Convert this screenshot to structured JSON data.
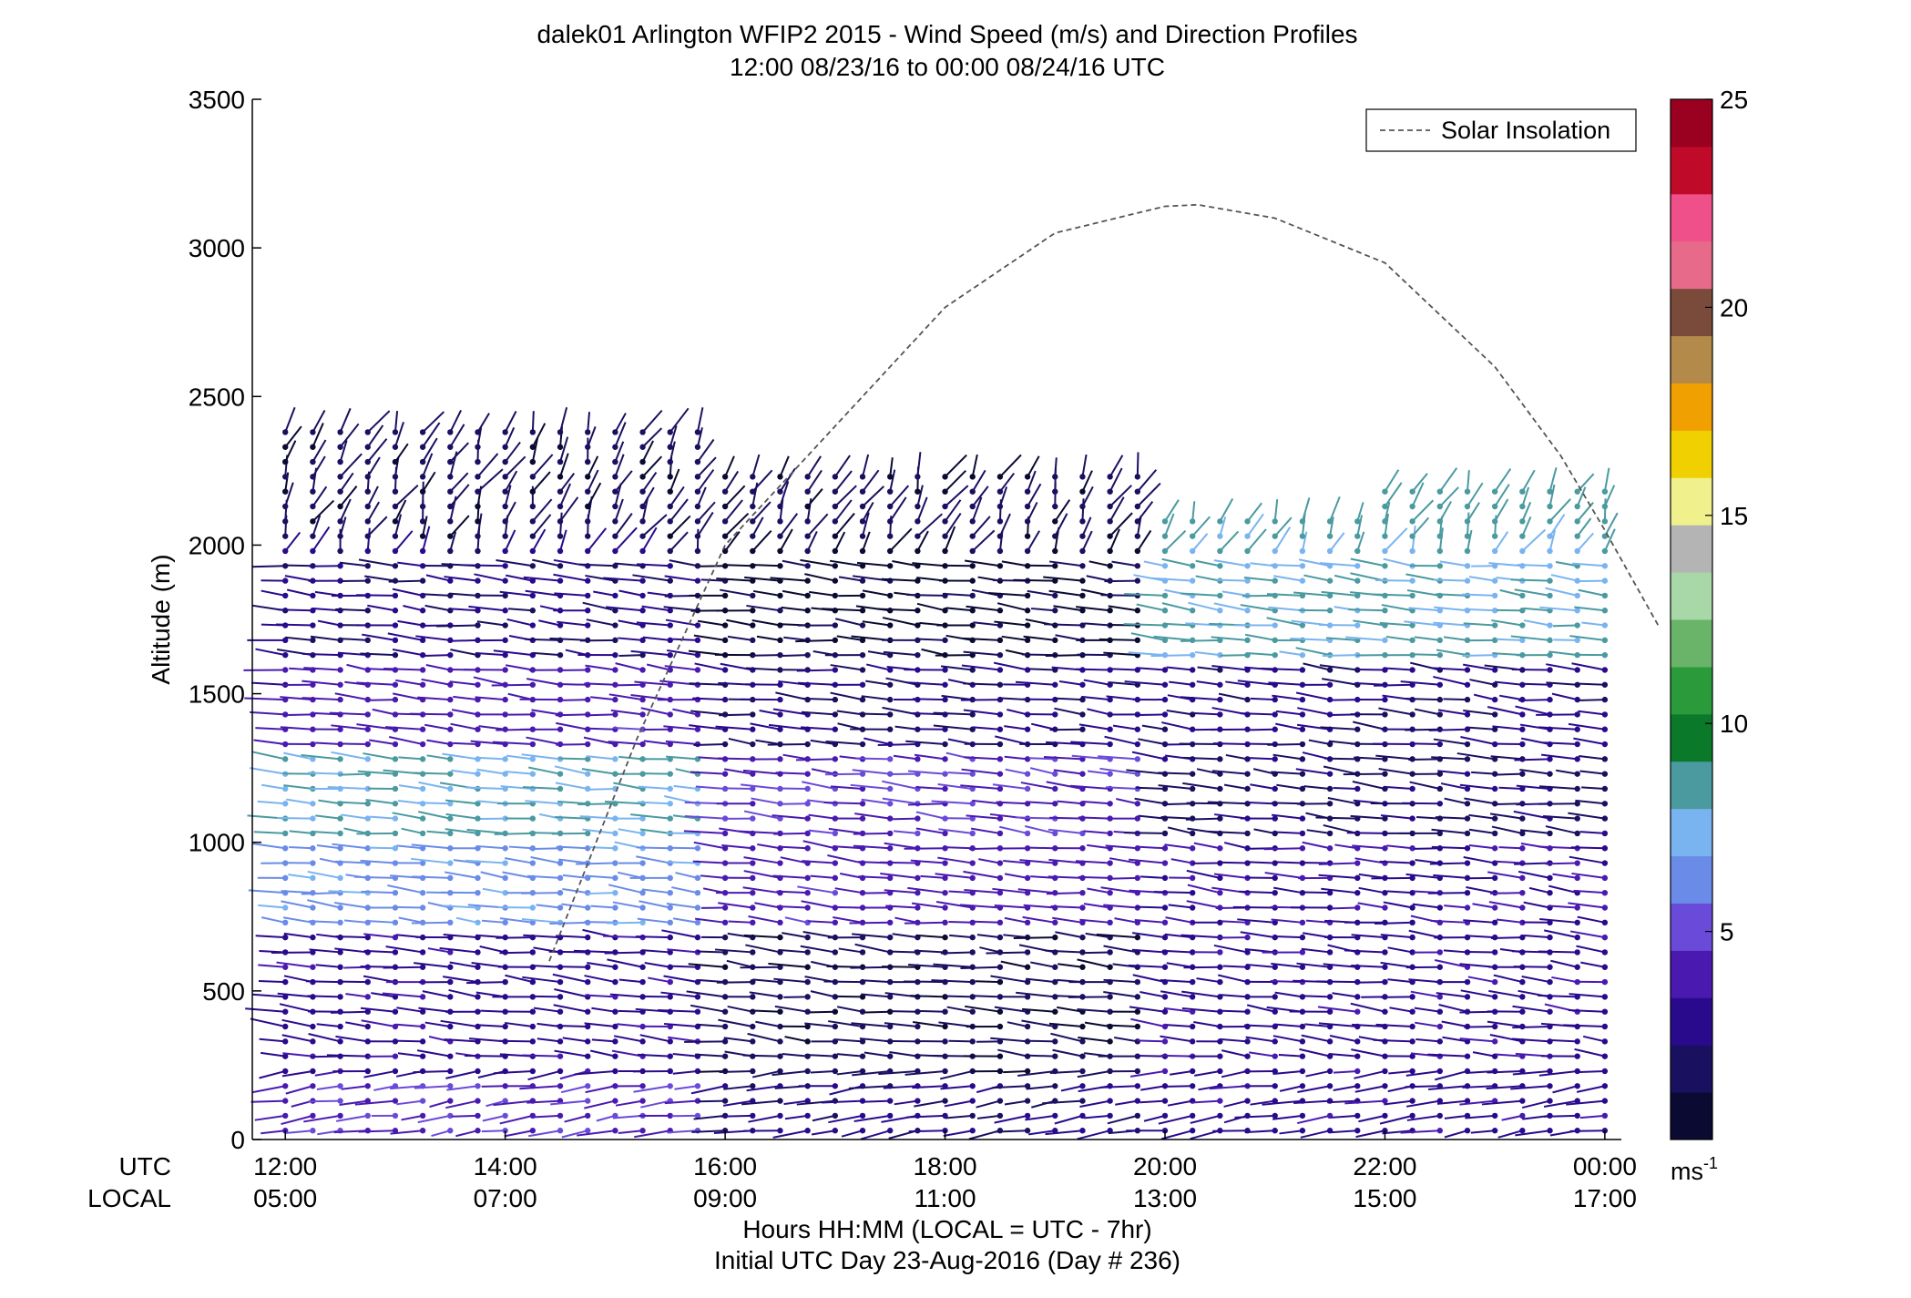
{
  "title": {
    "line1": "dalek01 Arlington WFIP2 2015 - Wind Speed (m/s) and Direction Profiles",
    "line2": "12:00 08/23/16 to 00:00 08/24/16  UTC"
  },
  "footer": {
    "line1": "Hours HH:MM  (LOCAL = UTC - 7hr)",
    "line2": "Initial UTC Day 23-Aug-2016 (Day # 236)"
  },
  "colors": {
    "colormap": [
      "#0a0a32",
      "#1a1060",
      "#2a0a8c",
      "#4a1ab0",
      "#6a4ad8",
      "#6a8ce8",
      "#7ab4f0",
      "#4a9aa0",
      "#0a7a2a",
      "#2a9a3a",
      "#6ab46a",
      "#a8d8a8",
      "#b4b4b4",
      "#f0f08c",
      "#f0d000",
      "#f0a000",
      "#b48a4a",
      "#7a4a3a",
      "#e86a8a",
      "#f0508a",
      "#c00a2a",
      "#9a0020"
    ],
    "solar_line": "#555555",
    "axis": "#000000"
  },
  "chart_data": {
    "type": "scatter",
    "description_kind": "wind-barb-profile",
    "ylabel": "Altitude (m)",
    "ylim": [
      0,
      3500
    ],
    "yticks": [
      "0",
      "500",
      "1000",
      "1500",
      "2000",
      "2500",
      "3000",
      "3500"
    ],
    "xlim_hours_utc": [
      11.7,
      24.15
    ],
    "x_row_labels": {
      "utc": "UTC",
      "local": "LOCAL"
    },
    "xticks": [
      {
        "hour": 12,
        "utc": "12:00",
        "local": "05:00"
      },
      {
        "hour": 14,
        "utc": "14:00",
        "local": "07:00"
      },
      {
        "hour": 16,
        "utc": "16:00",
        "local": "09:00"
      },
      {
        "hour": 18,
        "utc": "18:00",
        "local": "11:00"
      },
      {
        "hour": 20,
        "utc": "20:00",
        "local": "13:00"
      },
      {
        "hour": 22,
        "utc": "22:00",
        "local": "15:00"
      },
      {
        "hour": 24,
        "utc": "00:00",
        "local": "17:00"
      }
    ],
    "legend": {
      "entries": [
        "Solar Insolation"
      ],
      "position": "top-right"
    },
    "colorbar": {
      "min": 0,
      "max": 25,
      "ticks": [
        "5",
        "10",
        "15",
        "20",
        "25"
      ],
      "unit": "ms-1"
    },
    "solar_insolation_altitude": [
      [
        11.7,
        null
      ],
      [
        14.4,
        600
      ],
      [
        15.2,
        1350
      ],
      [
        16.0,
        2000
      ],
      [
        17.0,
        2400
      ],
      [
        18.0,
        2800
      ],
      [
        19.0,
        3050
      ],
      [
        20.0,
        3140
      ],
      [
        20.3,
        3145
      ],
      [
        21.0,
        3100
      ],
      [
        22.0,
        2950
      ],
      [
        23.0,
        2600
      ],
      [
        23.6,
        2300
      ],
      [
        24.0,
        2050
      ],
      [
        24.5,
        1720
      ]
    ],
    "profile_times_utc": [
      12.0,
      12.25,
      12.5,
      12.75,
      13.0,
      13.25,
      13.5,
      13.75,
      14.0,
      14.25,
      14.5,
      14.75,
      15.0,
      15.25,
      15.5,
      15.75,
      16.0,
      16.25,
      16.5,
      16.75,
      17.0,
      17.25,
      17.5,
      17.75,
      18.0,
      18.25,
      18.5,
      18.75,
      19.0,
      19.25,
      19.5,
      19.75,
      20.0,
      20.25,
      20.5,
      20.75,
      21.0,
      21.25,
      21.5,
      21.75,
      22.0,
      22.25,
      22.5,
      22.75,
      23.0,
      23.25,
      23.5,
      23.75,
      24.0
    ],
    "speed_layers": [
      {
        "alt_range": [
          0,
          200
        ],
        "speed_by_period": {
          "12-16": 4.5,
          "16-20": 2.5,
          "20-24": 3.0
        }
      },
      {
        "alt_range": [
          200,
          700
        ],
        "speed_by_period": {
          "12-16": 3.0,
          "16-20": 1.5,
          "20-24": 3.0
        }
      },
      {
        "alt_range": [
          700,
          1000
        ],
        "speed_by_period": {
          "12-16": 6.5,
          "16-20": 4.0,
          "20-24": 3.5
        }
      },
      {
        "alt_range": [
          1000,
          1300
        ],
        "speed_by_period": {
          "12-16": 8.0,
          "16-20": 4.5,
          "20-24": 2.0
        }
      },
      {
        "alt_range": [
          1300,
          1600
        ],
        "speed_by_period": {
          "12-16": 4.0,
          "16-20": 2.5,
          "20-24": 2.5
        }
      },
      {
        "alt_range": [
          1600,
          2000
        ],
        "speed_by_period": {
          "12-16": 2.5,
          "16-20": 1.0,
          "20-24": 8.0
        }
      },
      {
        "alt_range": [
          2000,
          2450
        ],
        "speed_by_period": {
          "12-16": 1.5,
          "16-20": 1.5,
          "20-24": 8.5
        }
      }
    ],
    "max_profile_top": {
      "12-16": 2400,
      "16-20": 2250,
      "20-22": 2100,
      "22-24": 2200
    }
  }
}
